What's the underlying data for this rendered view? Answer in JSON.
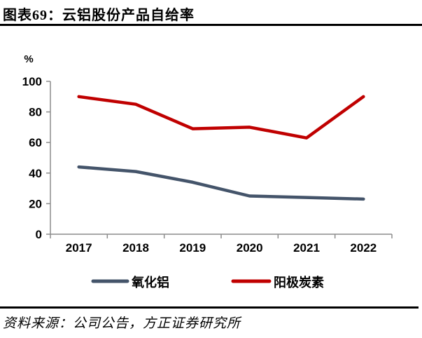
{
  "header": {
    "title": "图表69：云铝股份产品自给率"
  },
  "footer": {
    "source": "资料来源：公司公告，方正证券研究所"
  },
  "chart_data": {
    "type": "line",
    "title": "云铝股份产品自给率",
    "unit_label": "%",
    "xlabel": "",
    "ylabel": "%",
    "categories": [
      "2017",
      "2018",
      "2019",
      "2020",
      "2021",
      "2022"
    ],
    "series": [
      {
        "key": "alumina",
        "name": "氧化铝",
        "color": "#44546A",
        "values": [
          44,
          41,
          34,
          25,
          24,
          23
        ]
      },
      {
        "key": "anode-carbon",
        "name": "阳极炭素",
        "color": "#C00000",
        "values": [
          90,
          85,
          69,
          70,
          63,
          90
        ]
      }
    ],
    "ylim": [
      0,
      100
    ],
    "ytick_step": 20,
    "yticks": [
      0,
      20,
      40,
      60,
      80,
      100
    ],
    "grid": false,
    "legend_position": "bottom",
    "axis_color": "#8C8C8C",
    "text_color": "#000000"
  }
}
